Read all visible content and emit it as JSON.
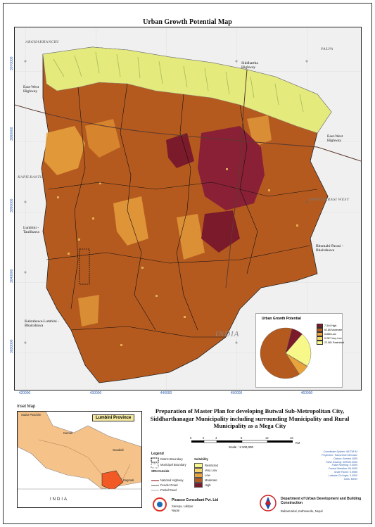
{
  "title": "Urban Growth Potential Map",
  "ticks": {
    "x": [
      "420000",
      "430000",
      "440000",
      "450000",
      "460000"
    ],
    "y": [
      "3070000",
      "3060000",
      "3050000",
      "3040000",
      "3030000"
    ]
  },
  "map_labels": {
    "arghakhanchi": "ARGHAKHANCHI",
    "palpa": "PALPA",
    "kapilbastu": "KAPILBASTU",
    "nawalparasi": "NAWALPARASI WEST",
    "india": "INDIA",
    "siddhartha_highway": "Siddhartha Highway",
    "east_west_highway_left": "East-West Highway",
    "east_west_highway_right": "East-West Highway",
    "lumbini": "Lumbini -Taulihawa",
    "bhumahi": "Bhumahi-Parasi -Bhairahawa",
    "kakrahawa": "Kakrahawa-Lumbini -Bhairahawa"
  },
  "pie_legend": {
    "title": "Urban Growth Potential",
    "items": [
      {
        "label": "7.344 High",
        "color": "#7a1a2a",
        "value": 7.344
      },
      {
        "label": "62.86 Moderate",
        "color": "#b55a1f",
        "value": 62.86
      },
      {
        "label": "6.886 Low",
        "color": "#e8a33d",
        "value": 6.886
      },
      {
        "label": "0.287 Very Low",
        "color": "#f6d56a",
        "value": 0.287
      },
      {
        "label": "22.081 Restricted",
        "color": "#f7f78a",
        "value": 22.081
      }
    ]
  },
  "inset": {
    "title": "Inset Map",
    "province_label": "Lumbini Province",
    "india_label": "INDIA",
    "labels": [
      "Sudur Paschim",
      "Karnali",
      "Gandaki",
      "Bagmati"
    ]
  },
  "plan_title": "Preparation of Master Plan for developing Butwal Sub-Metropolitan City, Siddharthanagar Municipality including surrounding Municipality and Rural Municipality as a Mega City",
  "scale": {
    "ticks": [
      "0",
      "2",
      "4",
      "8",
      "12",
      "16"
    ],
    "unit": "KM",
    "text": "Scale : 1:100,000"
  },
  "coordinate_info": [
    "Coordinate System: MUTM 84",
    "Projection: Transverse Mercator",
    "Datum: Everest 1830",
    "False Easting: 500000.0000",
    "False Northing: 0.0000",
    "Central Meridian: 84.0000",
    "Scale Factor: 0.9999",
    "Latitude Of Origin: 0.0000",
    "Units: Meter"
  ],
  "map_legend": {
    "title": "Legend",
    "boundaries": [
      "District Boundary",
      "Municipal Boundary"
    ],
    "sen_title": "SRN Outside",
    "roads": [
      "National Highway",
      "Feeder Road",
      "Postal Road"
    ],
    "suitability_title": "Suitability",
    "suitability": [
      {
        "label": "Restricted",
        "color": "#f7f78a"
      },
      {
        "label": "Very Low",
        "color": "#f6d56a"
      },
      {
        "label": "Low",
        "color": "#e8a33d"
      },
      {
        "label": "Moderate",
        "color": "#b55a1f"
      },
      {
        "label": "High",
        "color": "#7a1a2a"
      }
    ]
  },
  "consultant": {
    "name": "Picasso Consultant Pvt. Ltd",
    "address": "Sanepa, Lalitpur",
    "country": "Nepal"
  },
  "department": {
    "name": "Department of Urban Development and Building Construction",
    "address": "Babarmahal, Kathmandu, Nepal"
  }
}
